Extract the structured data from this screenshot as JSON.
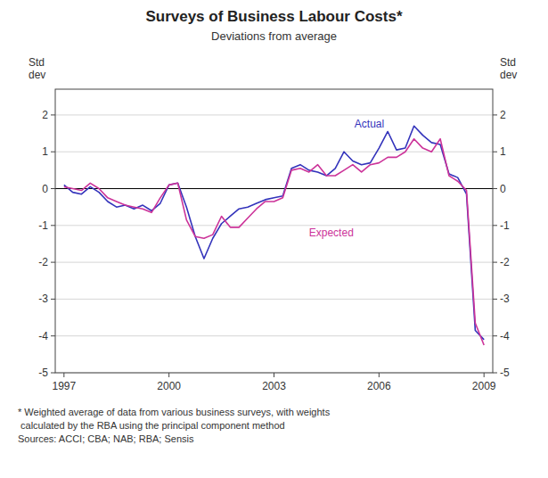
{
  "chart_data": {
    "type": "line",
    "title": "Surveys of Business Labour Costs*",
    "subtitle": "Deviations from average",
    "footnote": "*  Weighted average of data from various business surveys, with weights\n   calculated by the RBA using the principal component method\nSources: ACCI; CBA; NAB; RBA; Sensis",
    "ylabel": "Std\ndev",
    "y2label": "Std\ndev",
    "x": [
      1997.0,
      1997.25,
      1997.5,
      1997.75,
      1998.0,
      1998.25,
      1998.5,
      1998.75,
      1999.0,
      1999.25,
      1999.5,
      1999.75,
      2000.0,
      2000.25,
      2000.5,
      2000.75,
      2001.0,
      2001.25,
      2001.5,
      2001.75,
      2002.0,
      2002.25,
      2002.5,
      2002.75,
      2003.0,
      2003.25,
      2003.5,
      2003.75,
      2004.0,
      2004.25,
      2004.5,
      2004.75,
      2005.0,
      2005.25,
      2005.5,
      2005.75,
      2006.0,
      2006.25,
      2006.5,
      2006.75,
      2007.0,
      2007.25,
      2007.5,
      2007.75,
      2008.0,
      2008.25,
      2008.5,
      2008.75,
      2009.0
    ],
    "series": [
      {
        "name": "Actual",
        "color": "#3333bb",
        "values": [
          0.1,
          -0.1,
          -0.15,
          0.05,
          -0.1,
          -0.35,
          -0.5,
          -0.45,
          -0.55,
          -0.45,
          -0.6,
          -0.4,
          0.1,
          0.15,
          -0.5,
          -1.3,
          -1.9,
          -1.35,
          -0.95,
          -0.75,
          -0.55,
          -0.5,
          -0.4,
          -0.3,
          -0.25,
          -0.2,
          0.55,
          0.65,
          0.5,
          0.45,
          0.35,
          0.55,
          1.0,
          0.75,
          0.65,
          0.7,
          1.1,
          1.55,
          1.05,
          1.1,
          1.7,
          1.45,
          1.25,
          1.2,
          0.4,
          0.3,
          -0.15,
          -3.85,
          -4.1
        ]
      },
      {
        "name": "Expected",
        "color": "#cc3399",
        "values": [
          0.05,
          0.0,
          -0.05,
          0.15,
          0.0,
          -0.25,
          -0.35,
          -0.45,
          -0.5,
          -0.55,
          -0.65,
          -0.25,
          0.1,
          0.15,
          -0.85,
          -1.3,
          -1.35,
          -1.25,
          -0.75,
          -1.05,
          -1.05,
          -0.8,
          -0.55,
          -0.35,
          -0.35,
          -0.25,
          0.5,
          0.55,
          0.45,
          0.65,
          0.35,
          0.35,
          0.5,
          0.65,
          0.45,
          0.65,
          0.7,
          0.85,
          0.85,
          1.0,
          1.35,
          1.1,
          1.0,
          1.35,
          0.35,
          0.2,
          -0.05,
          -3.65,
          -4.25
        ]
      }
    ],
    "annotations": [
      {
        "text": "Actual",
        "x": 2005.3,
        "y": 1.65
      },
      {
        "text": "Expected",
        "x": 2004.0,
        "y": -1.3
      }
    ],
    "xlim": [
      1996.75,
      2009.25
    ],
    "xticks": [
      1997,
      2000,
      2003,
      2006,
      2009
    ],
    "ylim": [
      -5,
      2.7
    ],
    "yticks": [
      -5,
      -4,
      -3,
      -2,
      -1,
      0,
      1,
      2
    ],
    "y2lim": [
      -5,
      2.7
    ],
    "y2ticks": [
      -5,
      -4,
      -3,
      -2,
      -1,
      0,
      1,
      2
    ],
    "grid": true
  }
}
